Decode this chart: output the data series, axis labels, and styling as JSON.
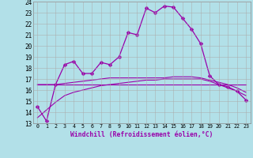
{
  "xlabel": "Windchill (Refroidissement éolien,°C)",
  "x": [
    0,
    1,
    2,
    3,
    4,
    5,
    6,
    7,
    8,
    9,
    10,
    11,
    12,
    13,
    14,
    15,
    16,
    17,
    18,
    19,
    20,
    21,
    22,
    23
  ],
  "line_main": [
    14.5,
    13.2,
    16.5,
    18.3,
    18.6,
    17.5,
    17.5,
    18.5,
    18.3,
    19.0,
    21.2,
    21.0,
    23.4,
    23.0,
    23.6,
    23.5,
    22.5,
    21.5,
    20.2,
    17.3,
    16.5,
    16.3,
    15.9,
    15.1
  ],
  "line_flat": [
    16.5,
    16.5,
    16.5,
    16.5,
    16.5,
    16.5,
    16.5,
    16.5,
    16.5,
    16.5,
    16.5,
    16.5,
    16.5,
    16.5,
    16.5,
    16.5,
    16.5,
    16.5,
    16.5,
    16.5,
    16.5,
    16.5,
    16.5,
    16.5
  ],
  "line_diag1": [
    16.5,
    16.5,
    16.5,
    16.6,
    16.7,
    16.8,
    16.9,
    17.0,
    17.1,
    17.1,
    17.1,
    17.1,
    17.1,
    17.1,
    17.1,
    17.2,
    17.2,
    17.2,
    17.1,
    16.9,
    16.7,
    16.5,
    16.2,
    15.8
  ],
  "line_diag2": [
    13.5,
    14.2,
    14.9,
    15.5,
    15.8,
    16.0,
    16.2,
    16.4,
    16.5,
    16.6,
    16.7,
    16.8,
    16.9,
    16.9,
    17.0,
    17.0,
    17.0,
    17.0,
    17.0,
    16.8,
    16.5,
    16.2,
    15.9,
    15.5
  ],
  "ylim": [
    13,
    24
  ],
  "xlim": [
    -0.5,
    23.5
  ],
  "line_color": "#9900aa",
  "bg_color": "#b2e0e8",
  "grid_color": "#cccccc",
  "marker": "D",
  "marker_size": 2.5
}
